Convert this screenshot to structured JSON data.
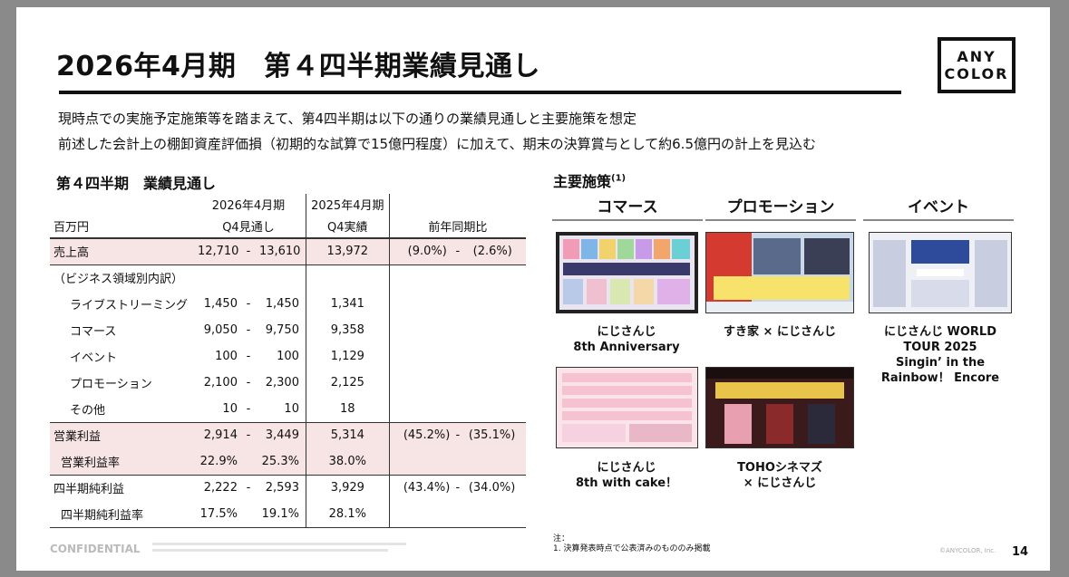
{
  "title": "2026年4月期　第４四半期業績見通し",
  "logo": {
    "line1": "ANY",
    "line2": "COLOR"
  },
  "intro": [
    "現時点での実施予定施策等を踏まえて、第4四半期は以下の通りの業績見通しと主要施策を想定",
    "前述した会計上の棚卸資産評価損（初期的な試算で15億円程度）に加えて、期末の決算賞与として約6.5億円の計上を見込む"
  ],
  "table_section": {
    "title": "第４四半期　業績見通し",
    "unit": "百万円",
    "col1_line1": "2026年4月期",
    "col1_line2": "Q4見通し",
    "col2_line1": "2025年4月期",
    "col2_line2": "Q4実績",
    "col3": "前年同期比",
    "rows": [
      {
        "label": "売上高",
        "lo": "12,710",
        "hi": "13,610",
        "actual": "13,972",
        "yoy_lo": "(9.0%)",
        "yoy_hi": "(2.6%)"
      },
      {
        "label": "（ビジネス領域別内訳）"
      },
      {
        "label": "ライブストリーミング",
        "lo": "1,450",
        "hi": "1,450",
        "actual": "1,341"
      },
      {
        "label": "コマース",
        "lo": "9,050",
        "hi": "9,750",
        "actual": "9,358"
      },
      {
        "label": "イベント",
        "lo": "100",
        "hi": "100",
        "actual": "1,129"
      },
      {
        "label": "プロモーション",
        "lo": "2,100",
        "hi": "2,300",
        "actual": "2,125"
      },
      {
        "label": "その他",
        "lo": "10",
        "hi": "10",
        "actual": "18"
      },
      {
        "label": "営業利益",
        "lo": "2,914",
        "hi": "3,449",
        "actual": "5,314",
        "yoy_lo": "(45.2%)",
        "yoy_hi": "(35.1%)"
      },
      {
        "label": "営業利益率",
        "lo": "22.9%",
        "hi": "25.3%",
        "actual": "38.0%"
      },
      {
        "label": "四半期純利益",
        "lo": "2,222",
        "hi": "2,593",
        "actual": "3,929",
        "yoy_lo": "(43.4%)",
        "yoy_hi": "(34.0%)"
      },
      {
        "label": "四半期純利益率",
        "lo": "17.5%",
        "hi": "19.1%",
        "actual": "28.1%"
      }
    ],
    "dash": "-"
  },
  "initiatives": {
    "title": "主要施策",
    "title_sup": "(1)",
    "tabs": [
      "コマース",
      "プロモーション",
      "イベント"
    ],
    "items": [
      {
        "caption_line1": "にじさんじ",
        "caption_line2": "8th Anniversary"
      },
      {
        "caption_line1": "すき家 × にじさんじ"
      },
      {
        "caption_line1": "にじさんじ WORLD",
        "caption_line2": "TOUR 2025",
        "caption_line3": "Singin’ in the",
        "caption_line4": "Rainbow！ Encore"
      },
      {
        "caption_line1": "にじさんじ",
        "caption_line2": "8th with cake！"
      },
      {
        "caption_line1": "TOHOシネマズ",
        "caption_line2": "× にじさんじ"
      }
    ]
  },
  "footnote": {
    "head": "注：",
    "line1": "1. 決算発表時点で公表済みのもののみ掲載"
  },
  "footer": {
    "confidential": "CONFIDENTIAL",
    "copyright": "©ANYCOLOR, Inc.",
    "page_number": "14"
  },
  "colors": {
    "highlight_row": "#f7e4e4",
    "rule": "#111111"
  }
}
